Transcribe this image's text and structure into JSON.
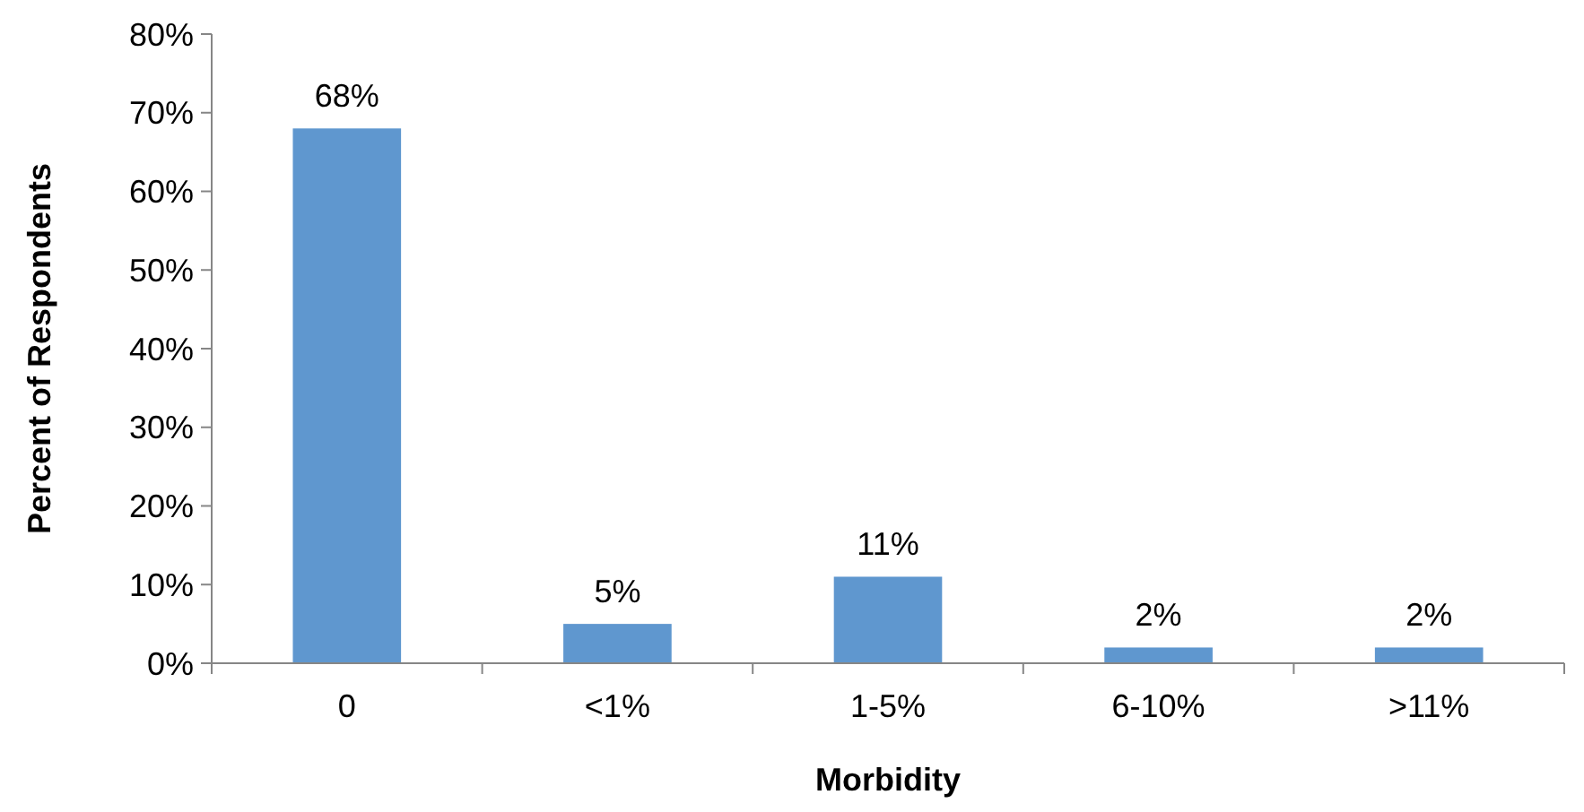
{
  "chart_data": {
    "type": "bar",
    "xlabel": "Morbidity",
    "ylabel": "Percent of Respondents",
    "categories": [
      "0",
      "<1%",
      "1-5%",
      "6-10%",
      ">11%"
    ],
    "values": [
      68,
      5,
      11,
      2,
      2
    ],
    "color": "#5f97cf",
    "ylim": [
      0,
      80
    ],
    "yticks": [
      {
        "value": 0,
        "label": "0%"
      },
      {
        "value": 10,
        "label": "10%"
      },
      {
        "value": 20,
        "label": "20%"
      },
      {
        "value": 30,
        "label": "30%"
      },
      {
        "value": 40,
        "label": "40%"
      },
      {
        "value": 50,
        "label": "50%"
      },
      {
        "value": 60,
        "label": "60%"
      },
      {
        "value": 70,
        "label": "70%"
      },
      {
        "value": 80,
        "label": "80%"
      }
    ],
    "value_labels": [
      "68%",
      "5%",
      "11%",
      "2%",
      "2%"
    ],
    "grid": false
  }
}
